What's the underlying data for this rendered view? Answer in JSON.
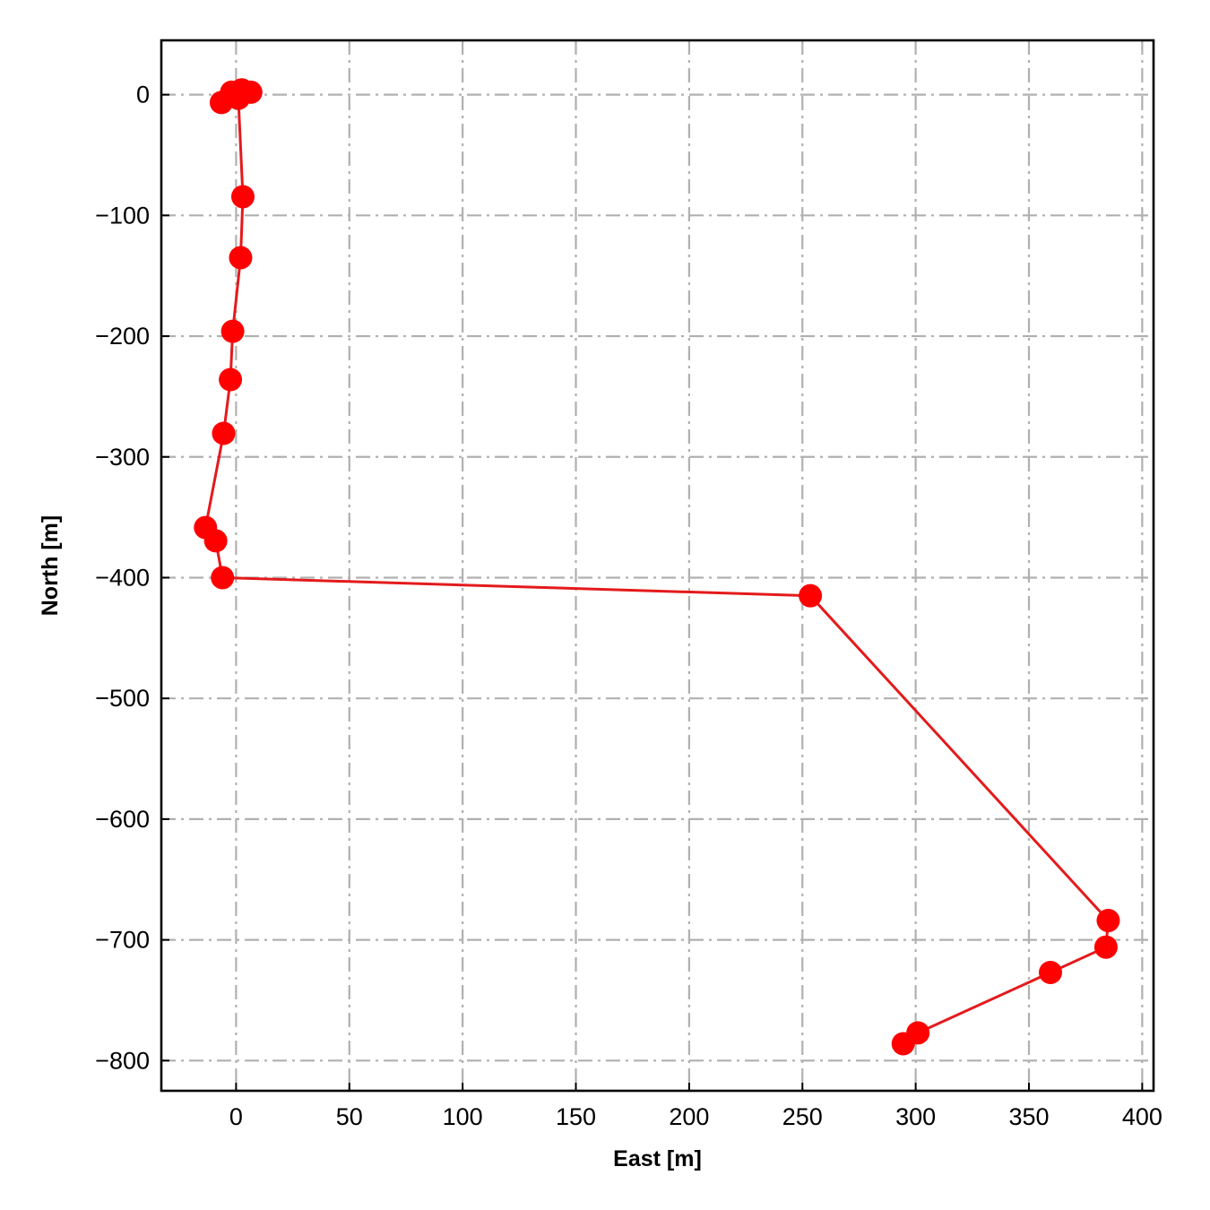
{
  "chart_data": {
    "type": "line",
    "title": "",
    "xlabel": "East [m]",
    "ylabel": "North [m]",
    "xlim": [
      -33,
      405
    ],
    "ylim": [
      -825,
      45
    ],
    "xticks": [
      0,
      50,
      100,
      150,
      200,
      250,
      300,
      350,
      400
    ],
    "yticks": [
      0,
      -100,
      -200,
      -300,
      -400,
      -500,
      -600,
      -700,
      -800
    ],
    "xtick_labels": [
      "0",
      "50",
      "100",
      "150",
      "200",
      "250",
      "300",
      "350",
      "400"
    ],
    "ytick_labels": [
      "0",
      "−100",
      "−200",
      "−300",
      "−400",
      "−500",
      "−600",
      "−700",
      "−800"
    ],
    "grid": true,
    "legend": "none",
    "series": [
      {
        "color": "#ff0000",
        "line_color": "#e41a1c",
        "marker": "circle",
        "x": [
          6.5,
          2.5,
          -2,
          -6.5,
          1,
          3,
          2,
          -1.5,
          -2.5,
          -5.5,
          -13.5,
          -9,
          -6,
          253.5,
          385,
          384,
          359.5,
          301,
          294.5
        ],
        "y": [
          2,
          4,
          2,
          -6.5,
          -3,
          -84.5,
          -135,
          -196,
          -236,
          -280.5,
          -358.5,
          -369.5,
          -400,
          -415,
          -684,
          -706,
          -727,
          -777,
          -786
        ]
      }
    ]
  }
}
